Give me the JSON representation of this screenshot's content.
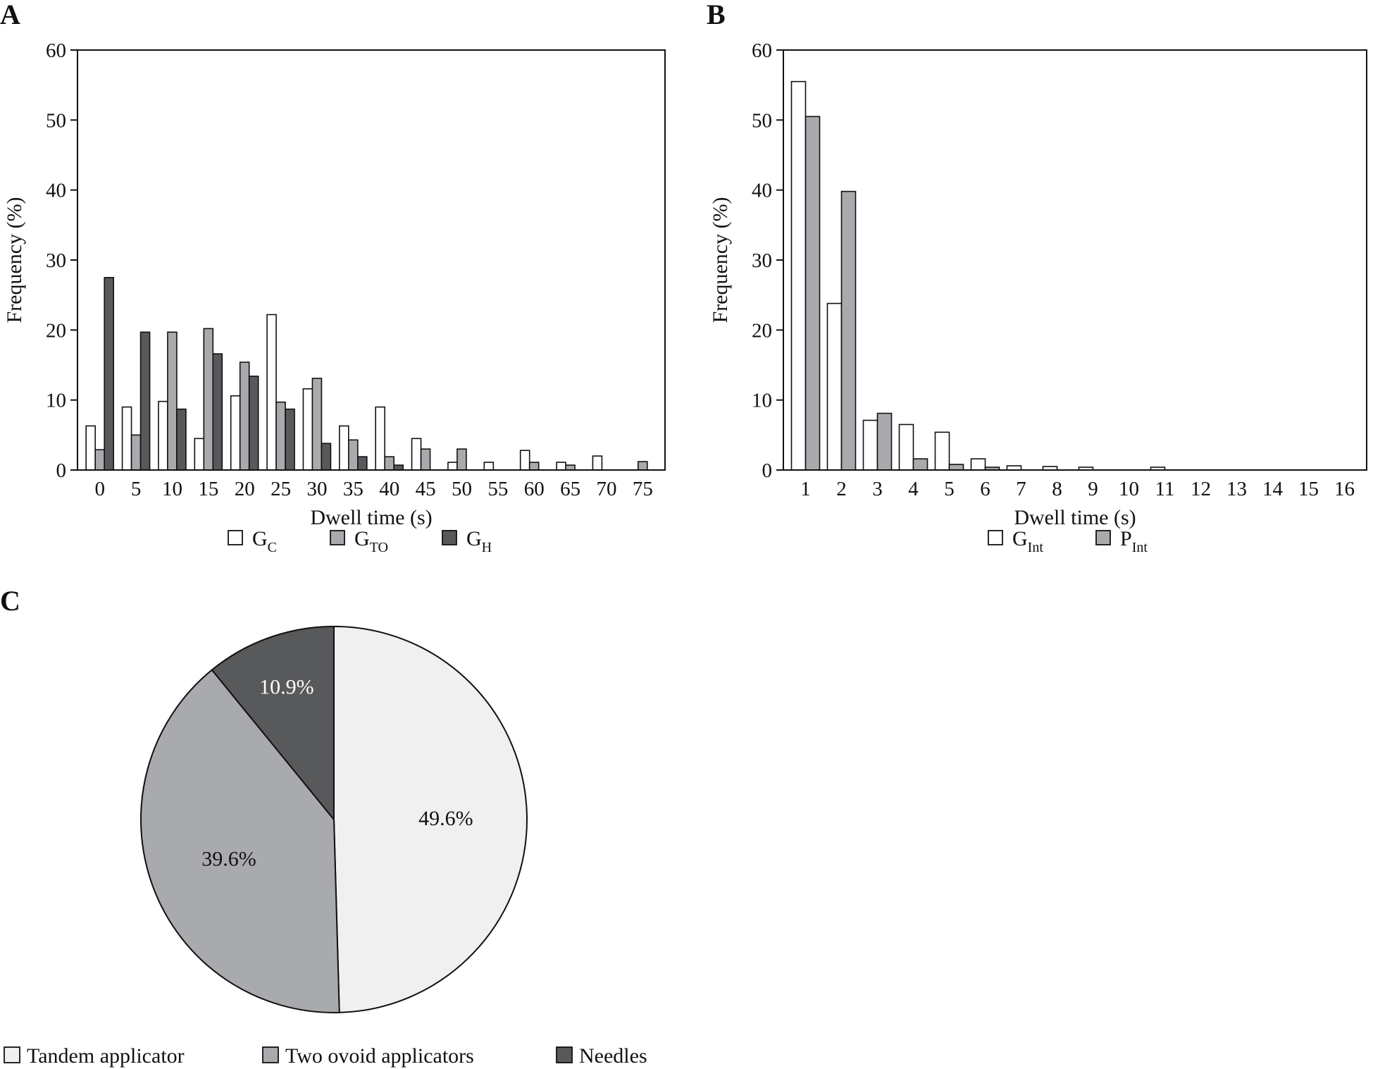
{
  "chart_data": [
    {
      "panel": "A",
      "type": "bar",
      "xlabel": "Dwell time (s)",
      "ylabel": "Frequency (%)",
      "ylim": [
        0,
        60
      ],
      "yticks": [
        "0",
        "10",
        "20",
        "30",
        "40",
        "50",
        "60"
      ],
      "categories": [
        "0",
        "5",
        "10",
        "15",
        "20",
        "25",
        "30",
        "35",
        "40",
        "45",
        "50",
        "55",
        "60",
        "65",
        "70",
        "75"
      ],
      "series": [
        {
          "name": "G",
          "sub": "C",
          "color": "#ffffff",
          "values": [
            6.3,
            9.0,
            9.8,
            4.5,
            10.6,
            22.2,
            11.6,
            6.3,
            9.0,
            4.5,
            1.1,
            1.1,
            2.8,
            1.1,
            2.0,
            0
          ]
        },
        {
          "name": "G",
          "sub": "TO",
          "color": "#a9aaad",
          "values": [
            2.9,
            5.0,
            19.7,
            20.2,
            15.4,
            9.7,
            13.1,
            4.3,
            1.9,
            3.0,
            3.0,
            0,
            1.1,
            0.7,
            0,
            1.2
          ]
        },
        {
          "name": "G",
          "sub": "H",
          "color": "#58595b",
          "values": [
            27.5,
            19.7,
            8.7,
            16.6,
            13.4,
            8.7,
            3.8,
            1.9,
            0.7,
            0,
            0,
            0,
            0,
            0,
            0,
            0
          ]
        }
      ]
    },
    {
      "panel": "B",
      "type": "bar",
      "xlabel": "Dwell time (s)",
      "ylabel": "Frequency (%)",
      "ylim": [
        0,
        60
      ],
      "yticks": [
        "0",
        "10",
        "20",
        "30",
        "40",
        "50",
        "60"
      ],
      "categories": [
        "1",
        "2",
        "3",
        "4",
        "5",
        "6",
        "7",
        "8",
        "9",
        "10",
        "11",
        "12",
        "13",
        "14",
        "15",
        "16"
      ],
      "series": [
        {
          "name": "G",
          "sub": "Int",
          "color": "#ffffff",
          "values": [
            55.5,
            23.8,
            7.1,
            6.5,
            5.4,
            1.6,
            0.6,
            0.5,
            0.4,
            0,
            0.4,
            0,
            0,
            0,
            0,
            0
          ]
        },
        {
          "name": "P",
          "sub": "Int",
          "color": "#a9aaad",
          "values": [
            50.5,
            39.8,
            8.1,
            1.6,
            0.8,
            0.4,
            0,
            0,
            0,
            0,
            0,
            0,
            0,
            0,
            0,
            0
          ]
        }
      ]
    },
    {
      "panel": "C",
      "type": "pie",
      "slices": [
        {
          "label": "Tandem applicator",
          "value": 49.6,
          "text": "49.6%",
          "color": "#f0f0f0",
          "text_color": "#111111"
        },
        {
          "label": "Two ovoid applicators",
          "value": 39.6,
          "text": "39.6%",
          "color": "#a9aaad",
          "text_color": "#111111"
        },
        {
          "label": "Needles",
          "value": 10.9,
          "text": "10.9%",
          "color": "#58595b",
          "text_color": "#ffffff"
        }
      ]
    }
  ]
}
